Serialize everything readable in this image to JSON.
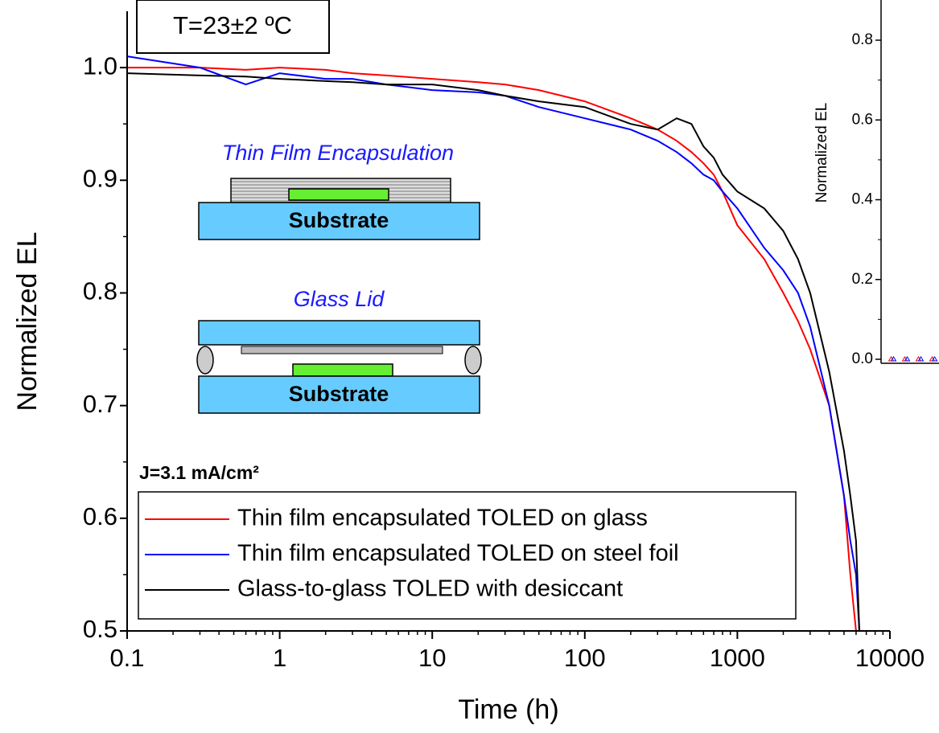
{
  "chart_data": [
    {
      "type": "line",
      "xlabel": "Time (h)",
      "ylabel": "Normalized EL",
      "xscale": "log",
      "xlim": [
        0.1,
        10000
      ],
      "xticks": [
        0.1,
        1,
        10,
        100,
        1000,
        10000
      ],
      "ylim": [
        0.5,
        1.05
      ],
      "yticks": [
        0.5,
        0.6,
        0.7,
        0.8,
        0.9,
        {
          "value": 1,
          "label": "1.0"
        }
      ],
      "annotations": [
        "T=23±2 ºC",
        "J=3.1 mA/cm²"
      ],
      "legend": "bottom-left",
      "x": [
        0.1,
        0.3,
        0.6,
        1,
        2,
        3,
        5,
        10,
        20,
        30,
        50,
        100,
        200,
        300,
        400,
        500,
        600,
        700,
        800,
        1000,
        1500,
        2000,
        2500,
        3000,
        4000,
        5000,
        5500,
        6000,
        6300
      ],
      "series": [
        {
          "name": "Thin film encapsulated TOLED on glass",
          "color": "#ff0000",
          "values": [
            1.0,
            1.0,
            0.998,
            1.0,
            0.998,
            0.995,
            0.993,
            0.99,
            0.987,
            0.985,
            0.98,
            0.97,
            0.955,
            0.945,
            0.935,
            0.925,
            0.915,
            0.905,
            0.89,
            0.86,
            0.83,
            0.8,
            0.775,
            0.75,
            0.7,
            0.62,
            0.55,
            0.5,
            null
          ]
        },
        {
          "name": "Thin film encapsulated TOLED on steel foil",
          "color": "#0000ff",
          "values": [
            1.01,
            1.0,
            0.985,
            0.995,
            0.99,
            0.99,
            0.985,
            0.98,
            0.978,
            0.975,
            0.965,
            0.955,
            0.945,
            0.935,
            0.925,
            0.915,
            0.905,
            0.9,
            0.89,
            0.875,
            0.84,
            0.82,
            0.8,
            0.77,
            0.7,
            0.62,
            0.58,
            0.55,
            0.5
          ]
        },
        {
          "name": "Glass-to-glass TOLED with desiccant",
          "color": "#000000",
          "values": [
            0.995,
            0.993,
            0.992,
            0.99,
            0.988,
            0.987,
            0.985,
            0.985,
            0.98,
            0.975,
            0.97,
            0.965,
            0.95,
            0.945,
            0.955,
            0.95,
            0.93,
            0.92,
            0.905,
            0.89,
            0.875,
            0.855,
            0.83,
            0.8,
            0.73,
            0.66,
            0.62,
            0.58,
            0.5
          ]
        }
      ]
    },
    {
      "type": "line",
      "ylabel": "Normalized EL",
      "ylim": [
        0,
        0.9
      ],
      "yticks": [
        {
          "value": 0,
          "label": "0.0"
        },
        0.2,
        0.4,
        0.6,
        0.8
      ],
      "categories": [
        null,
        null,
        null,
        null
      ],
      "series": [
        {
          "color": "#ff0000",
          "values": [
            0,
            0,
            0,
            0
          ]
        },
        {
          "color": "#0000ff",
          "values": [
            0,
            0,
            0,
            0
          ]
        }
      ]
    }
  ],
  "diagram": {
    "labels": [
      "Thin Film Encapsulation",
      "Substrate",
      "Glass Lid",
      "Substrate"
    ]
  }
}
